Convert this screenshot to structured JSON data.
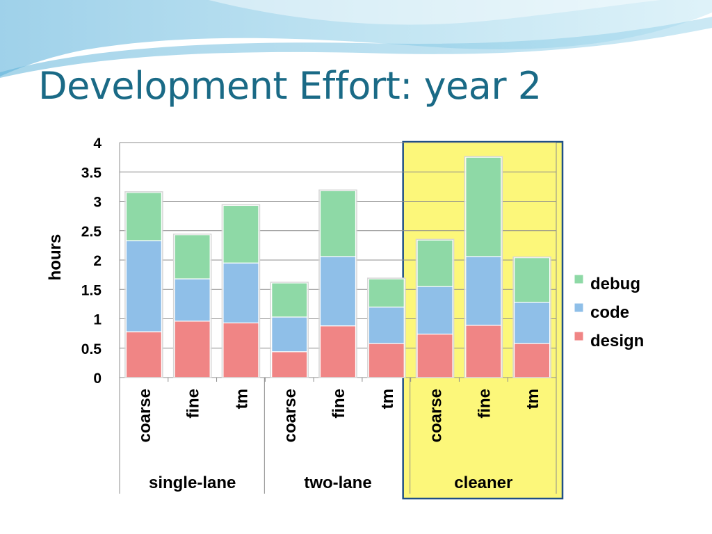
{
  "slide": {
    "title": "Development Effort: year 2"
  },
  "colors": {
    "design": "#f08585",
    "code": "#8fbfe8",
    "debug": "#8ed9a6",
    "highlight": "#fcf77a",
    "highlight_border": "#1f4f86",
    "title": "#1a6a86"
  },
  "chart_data": {
    "type": "bar",
    "stacked": true,
    "title": "",
    "ylabel": "hours",
    "xlabel": "",
    "ylim": [
      0,
      4
    ],
    "yticks": [
      "0",
      "0.5",
      "1",
      "1.5",
      "2",
      "2.5",
      "3",
      "3.5",
      "4"
    ],
    "grid": true,
    "legend_position": "right",
    "categories": [
      "coarse",
      "fine",
      "tm",
      "coarse",
      "fine",
      "tm",
      "coarse",
      "fine",
      "tm"
    ],
    "groups": [
      {
        "name": "single-lane",
        "categories": [
          "coarse",
          "fine",
          "tm"
        ]
      },
      {
        "name": "two-lane",
        "categories": [
          "coarse",
          "fine",
          "tm"
        ]
      },
      {
        "name": "cleaner",
        "categories": [
          "coarse",
          "fine",
          "tm"
        ],
        "highlighted": true
      }
    ],
    "series": [
      {
        "name": "design",
        "values": [
          0.78,
          0.96,
          0.93,
          0.44,
          0.88,
          0.58,
          0.74,
          0.89,
          0.58
        ]
      },
      {
        "name": "code",
        "values": [
          1.55,
          0.72,
          1.02,
          0.59,
          1.18,
          0.62,
          0.81,
          1.17,
          0.7
        ]
      },
      {
        "name": "debug",
        "values": [
          0.82,
          0.75,
          0.98,
          0.58,
          1.12,
          0.48,
          0.79,
          1.69,
          0.76
        ]
      }
    ],
    "legend": [
      "debug",
      "code",
      "design"
    ]
  }
}
